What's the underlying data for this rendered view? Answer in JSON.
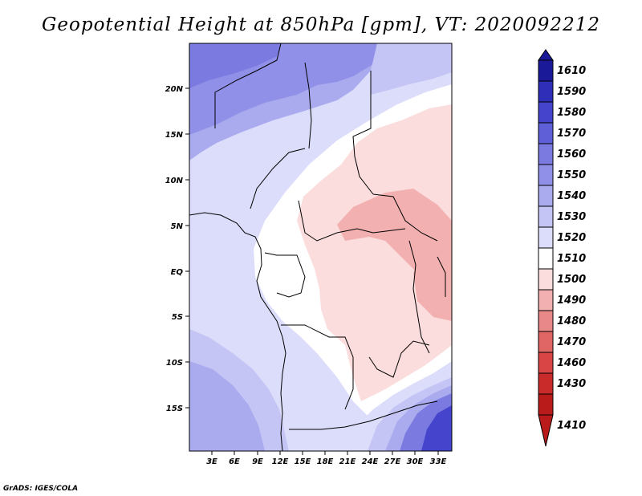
{
  "title": "Geopotential Height at 850hPa [gpm], VT: 2020092212",
  "credit": "GrADS: IGES/COLA",
  "colors": {
    "c1410": "#b91b1b",
    "c1430": "#c92b2b",
    "c1460": "#d94545",
    "c1470": "#e06565",
    "c1480": "#e88888",
    "c1490": "#f2b0b0",
    "c1500": "#fbdddd",
    "c1510": "#ffffff",
    "c1520": "#dcdcfb",
    "c1530": "#c4c4f5",
    "c1540": "#aaaaef",
    "c1550": "#9090e8",
    "c1560": "#7a7ae0",
    "c1570": "#5f5fd7",
    "c1580": "#4444cc",
    "c1590": "#2e2eb8",
    "c1610": "#1a1a99",
    "boundary": "#000000"
  },
  "map": {
    "lon_labels": [
      "3E",
      "6E",
      "9E",
      "12E",
      "15E",
      "18E",
      "21E",
      "24E",
      "27E",
      "30E",
      "33E"
    ],
    "lat_labels": [
      "20N",
      "15N",
      "10N",
      "5N",
      "EQ",
      "5S",
      "10S",
      "15S"
    ]
  },
  "colorbar": {
    "levels": [
      "1410",
      "1430",
      "1460",
      "1470",
      "1480",
      "1490",
      "1500",
      "1510",
      "1520",
      "1530",
      "1540",
      "1550",
      "1560",
      "1570",
      "1580",
      "1590",
      "1610"
    ]
  }
}
